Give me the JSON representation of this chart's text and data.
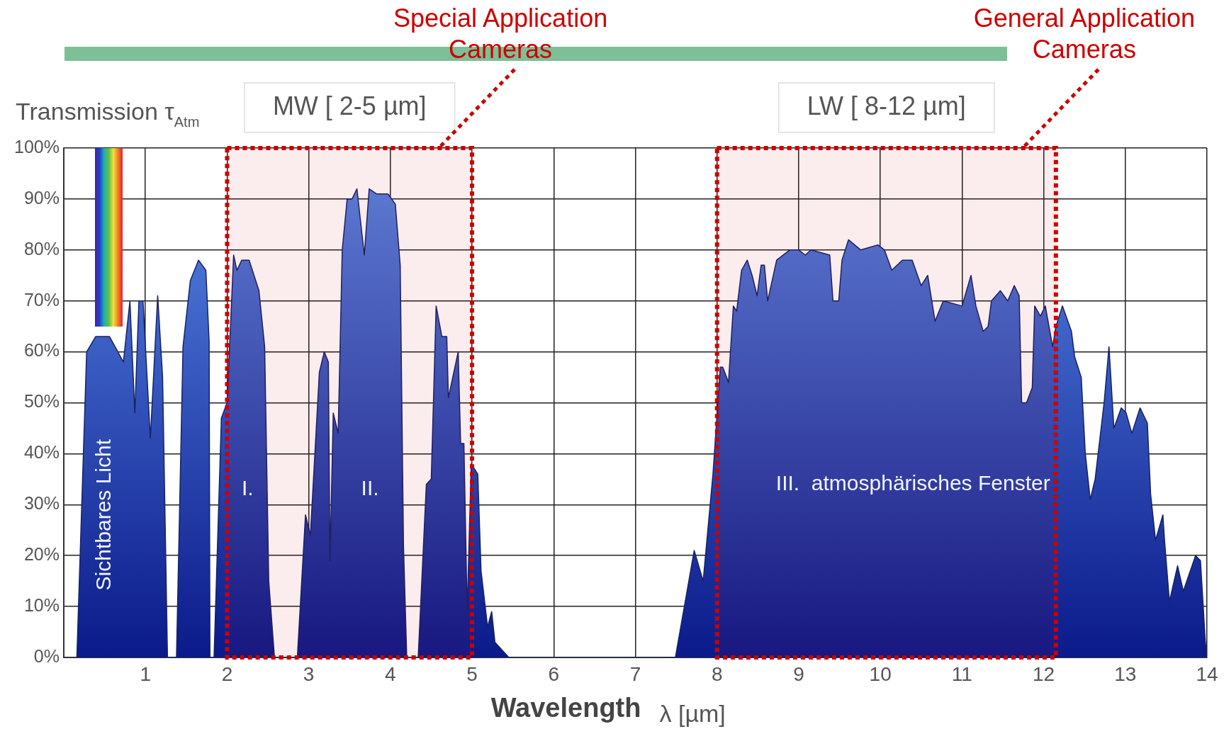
{
  "chart_data": {
    "type": "area",
    "ylabel": "Transmission τ$_{Atm}$",
    "xlabel": "λ [µm]",
    "x": [
      0.16,
      0.28,
      0.39,
      0.56,
      0.73,
      0.81,
      0.87,
      0.92,
      0.97,
      1.06,
      1.15,
      1.21,
      1.27,
      1.38,
      1.46,
      1.55,
      1.65,
      1.74,
      1.78,
      1.79,
      1.84,
      1.93,
      2.0,
      2.08,
      2.12,
      2.18,
      2.27,
      2.35,
      2.39,
      2.46,
      2.51,
      2.58,
      2.86,
      2.96,
      3.02,
      3.13,
      3.19,
      3.24,
      3.26,
      3.3,
      3.36,
      3.41,
      3.47,
      3.53,
      3.59,
      3.68,
      3.74,
      3.83,
      3.91,
      3.97,
      4.06,
      4.12,
      4.16,
      4.2,
      4.34,
      4.44,
      4.5,
      4.56,
      4.63,
      4.69,
      4.71,
      4.83,
      4.86,
      4.9,
      4.94,
      4.99,
      5.07,
      5.11,
      5.19,
      5.24,
      5.28,
      5.45,
      7.49,
      7.72,
      7.83,
      7.95,
      8.04,
      8.07,
      8.14,
      8.2,
      8.24,
      8.3,
      8.37,
      8.43,
      8.49,
      8.54,
      8.58,
      8.62,
      8.73,
      8.89,
      9.0,
      9.08,
      9.15,
      9.38,
      9.42,
      9.49,
      9.53,
      9.61,
      9.76,
      9.97,
      10.05,
      10.14,
      10.27,
      10.39,
      10.5,
      10.58,
      10.67,
      10.77,
      11.0,
      11.11,
      11.17,
      11.26,
      11.32,
      11.36,
      11.47,
      11.56,
      11.64,
      11.7,
      11.73,
      11.79,
      11.86,
      11.89,
      11.96,
      12.02,
      12.11,
      12.15,
      12.23,
      12.34,
      12.38,
      12.46,
      12.51,
      12.57,
      12.63,
      12.74,
      12.8,
      12.86,
      12.95,
      13.01,
      13.08,
      13.18,
      13.27,
      13.31,
      13.37,
      13.46,
      13.48,
      13.54,
      13.64,
      13.71,
      13.86,
      13.92,
      13.98,
      14
    ],
    "series": [
      {
        "color": "#5a8ae8",
        "values": [
          0,
          60,
          63,
          63,
          58,
          70,
          48,
          70,
          70,
          43,
          71,
          55,
          0,
          0,
          61,
          74,
          78,
          76,
          62,
          0,
          0,
          47,
          50,
          79,
          76,
          78,
          78,
          74,
          72,
          61,
          15,
          0,
          0,
          28,
          24,
          56,
          60,
          58,
          19,
          48,
          44,
          80,
          90,
          90,
          92,
          79,
          92,
          91,
          91,
          91,
          89,
          77,
          22,
          0,
          0,
          34,
          35,
          69,
          63,
          63,
          51,
          60,
          42,
          42,
          9,
          38,
          36,
          17,
          6,
          9,
          3,
          0,
          0,
          21,
          15,
          36,
          57,
          57,
          54,
          69,
          68,
          76,
          78,
          75,
          71,
          77,
          77,
          70,
          78,
          80,
          80,
          79,
          80,
          79,
          70,
          70,
          78,
          82,
          80,
          81,
          80,
          76,
          78,
          78,
          73,
          75,
          66,
          70,
          69,
          75,
          69,
          64,
          65,
          70,
          72,
          70,
          73,
          71,
          50,
          50,
          53,
          69,
          67,
          69,
          61,
          65,
          69,
          64,
          59,
          55,
          40,
          31,
          35,
          50,
          61,
          45,
          49,
          48,
          44,
          49,
          46,
          32,
          23,
          28,
          23,
          11,
          18,
          13,
          20,
          19,
          3,
          0
        ]
      }
    ],
    "xlim": [
      0,
      14
    ],
    "xticks": [
      1,
      2,
      3,
      4,
      5,
      6,
      7,
      8,
      9,
      10,
      11,
      12,
      13,
      14
    ],
    "ylim": [
      0,
      100
    ],
    "yticks": [
      {
        "value": 0,
        "label": "0%"
      },
      {
        "value": 10,
        "label": "10%"
      },
      {
        "value": 20,
        "label": "20%"
      },
      {
        "value": 30,
        "label": "30%"
      },
      {
        "value": 40,
        "label": "40%"
      },
      {
        "value": 50,
        "label": "50%"
      },
      {
        "value": 60,
        "label": "60%"
      },
      {
        "value": 70,
        "label": "70%"
      },
      {
        "value": 80,
        "label": "80%"
      },
      {
        "value": 90,
        "label": "90%"
      },
      {
        "value": 100,
        "label": "100%"
      }
    ],
    "grid": true,
    "legend": false,
    "bands": [
      {
        "axis": "x",
        "from": 2,
        "to": 5,
        "label": "MW [ 2-5 µm]",
        "color": "#cc0000"
      },
      {
        "axis": "x",
        "from": 8,
        "to": 12.15,
        "label": "LW [ 8-12 µm]",
        "color": "#cc0000"
      }
    ],
    "annotations": [
      "Special Application Cameras",
      "General Application Cameras",
      "Wavelength",
      "Sichtbares Licht",
      "I.",
      "II.",
      "III.  atmosphärisches Fenster"
    ]
  }
}
